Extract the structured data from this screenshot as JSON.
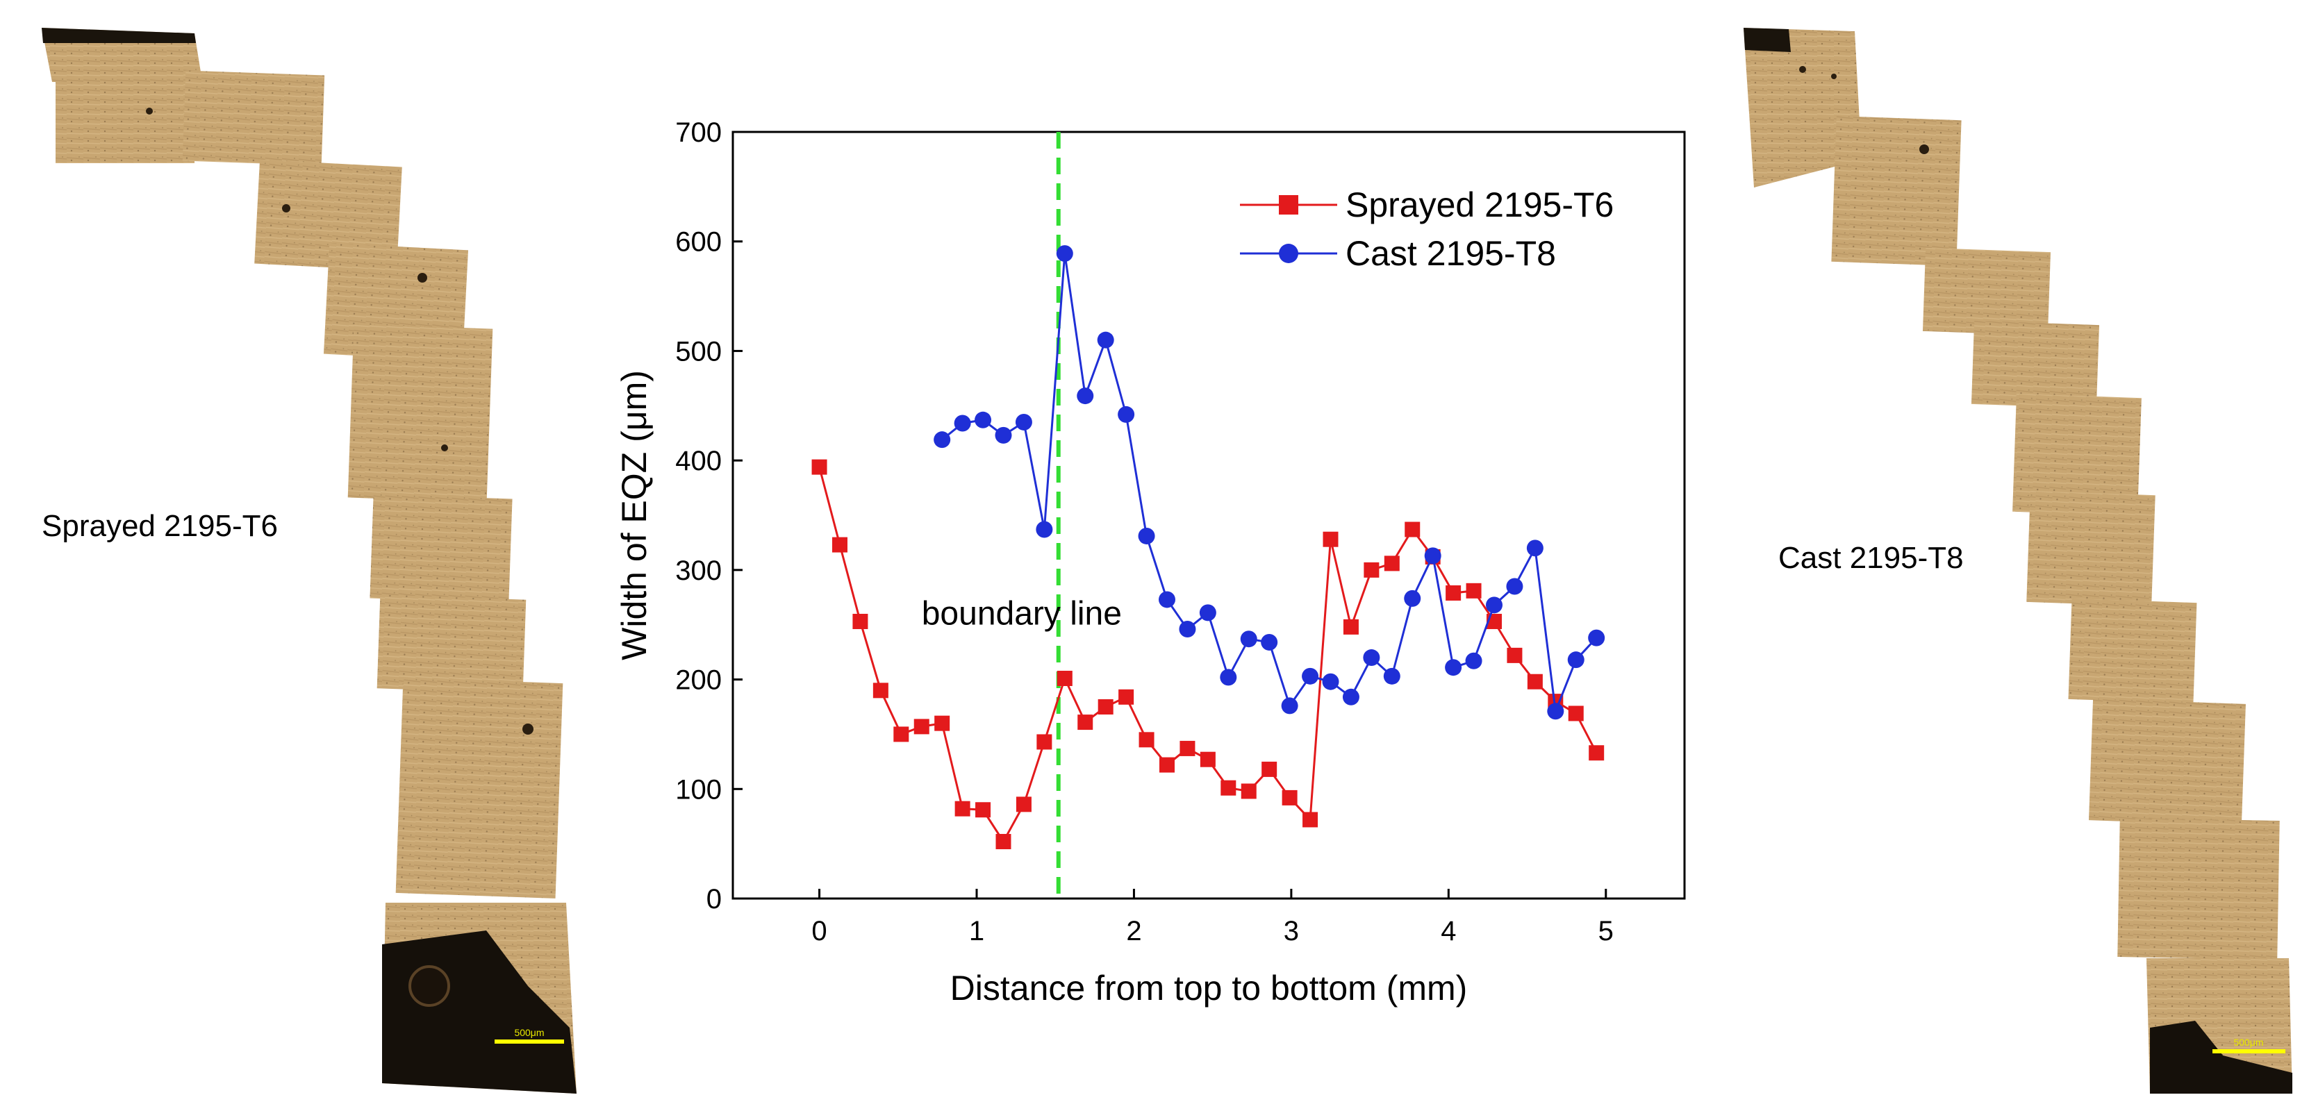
{
  "left_panel": {
    "label": "Sprayed 2195-T6",
    "scale_bar": "500μm"
  },
  "right_panel": {
    "label": "Cast 2195-T8",
    "scale_bar": "500μm"
  },
  "colors": {
    "sprayed": "#e31a1c",
    "cast": "#1f2fd6",
    "boundary": "#33dd33",
    "micro": "#c8a672"
  },
  "chart_data": {
    "type": "line",
    "title": "",
    "xlabel": "Distance from top to bottom (mm)",
    "ylabel": "Width of EQZ (μm)",
    "xlim": [
      -0.55,
      5.5
    ],
    "ylim": [
      0,
      700
    ],
    "xticks": [
      0,
      1,
      2,
      3,
      4,
      5
    ],
    "yticks": [
      0,
      100,
      200,
      300,
      400,
      500,
      600,
      700
    ],
    "legend_position": "top-right",
    "annotation": {
      "text": "boundary line",
      "x": 1.52
    },
    "series": [
      {
        "name": "Sprayed 2195-T6",
        "marker": "square",
        "x": [
          0,
          0.13,
          0.26,
          0.39,
          0.52,
          0.65,
          0.78,
          0.91,
          1.04,
          1.17,
          1.3,
          1.43,
          1.56,
          1.69,
          1.82,
          1.95,
          2.08,
          2.21,
          2.34,
          2.47,
          2.6,
          2.73,
          2.86,
          2.99,
          3.12,
          3.25,
          3.38,
          3.51,
          3.64,
          3.77,
          3.9,
          4.03,
          4.16,
          4.29,
          4.42,
          4.55,
          4.68,
          4.81,
          4.94
        ],
        "y": [
          394,
          323,
          253,
          190,
          150,
          157,
          160,
          82,
          81,
          52,
          86,
          143,
          201,
          161,
          175,
          184,
          145,
          122,
          137,
          127,
          101,
          98,
          118,
          92,
          72,
          328,
          248,
          300,
          306,
          337,
          312,
          279,
          281,
          253,
          222,
          198,
          180,
          169,
          133
        ]
      },
      {
        "name": "Cast 2195-T8",
        "marker": "circle",
        "x": [
          0.78,
          0.91,
          1.04,
          1.17,
          1.3,
          1.43,
          1.56,
          1.69,
          1.82,
          1.95,
          2.08,
          2.21,
          2.34,
          2.47,
          2.6,
          2.73,
          2.86,
          2.99,
          3.12,
          3.25,
          3.38,
          3.51,
          3.64,
          3.77,
          3.9,
          4.03,
          4.16,
          4.29,
          4.42,
          4.55,
          4.68,
          4.81,
          4.94
        ],
        "y": [
          419,
          434,
          437,
          423,
          435,
          337,
          589,
          459,
          510,
          442,
          331,
          273,
          246,
          261,
          202,
          237,
          234,
          176,
          203,
          198,
          184,
          220,
          203,
          274,
          313,
          211,
          217,
          268,
          285,
          320,
          171,
          218,
          238
        ]
      }
    ]
  }
}
